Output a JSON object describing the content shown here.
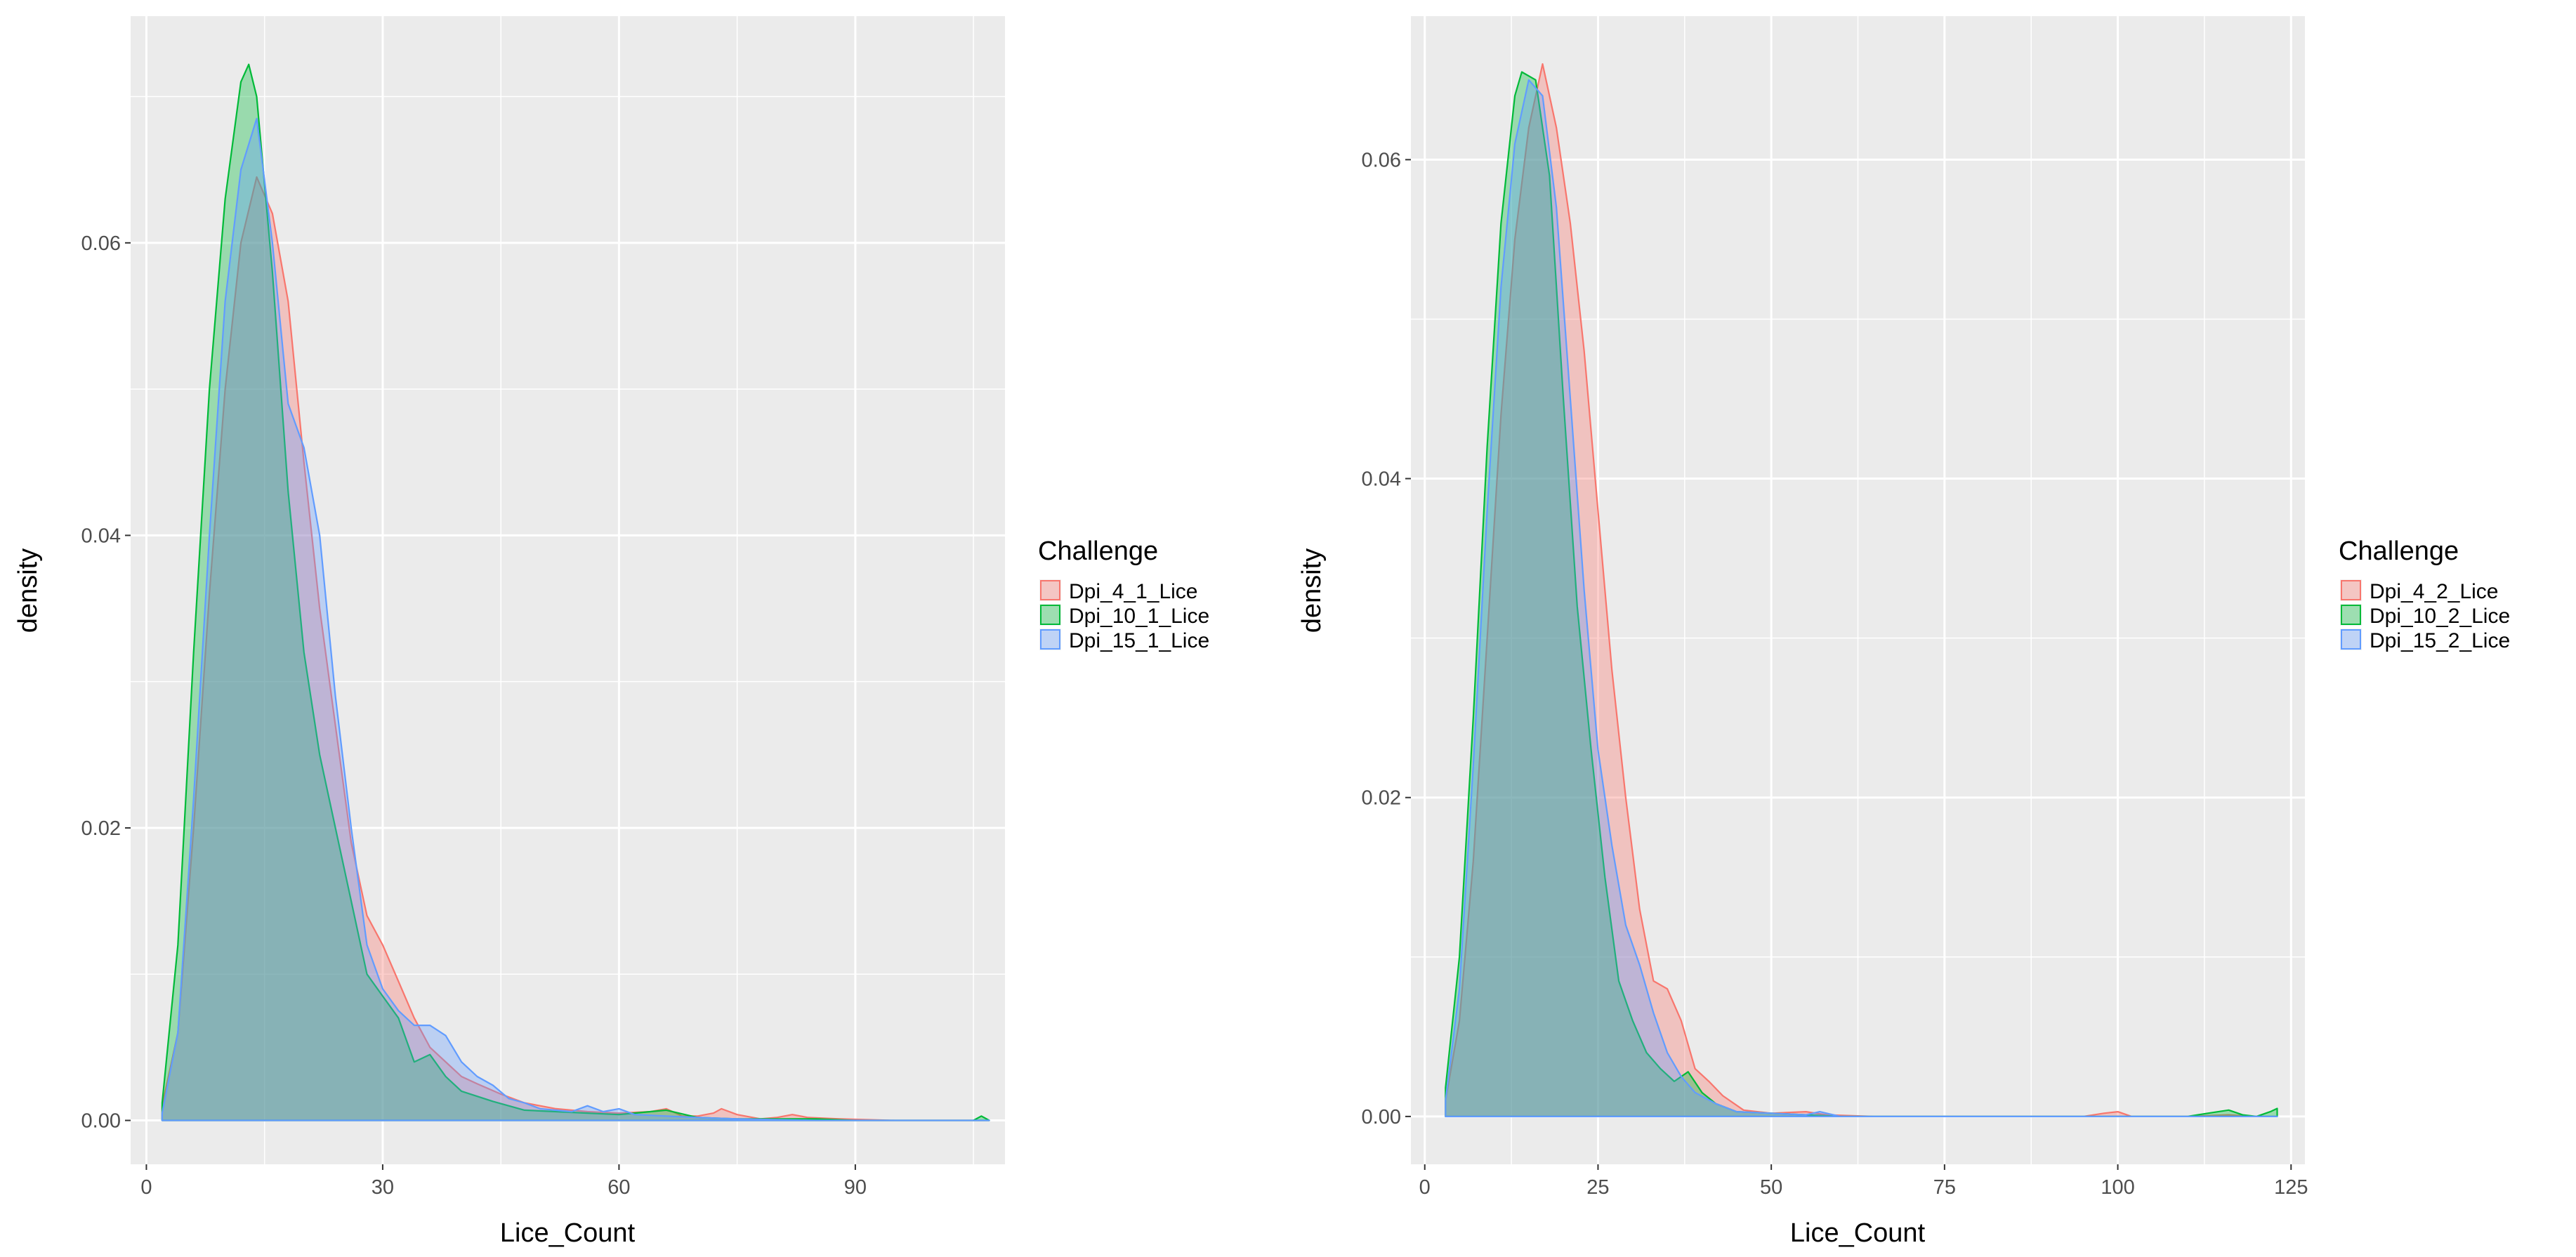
{
  "chart_data": [
    {
      "type": "area",
      "subtype": "density",
      "title": "",
      "xlabel": "Lice_Count",
      "ylabel": "density",
      "xlim": [
        -2,
        109
      ],
      "ylim": [
        -0.003,
        0.0755
      ],
      "x_ticks": [
        0,
        30,
        60,
        90
      ],
      "x_tick_labels": [
        "0",
        "30",
        "60",
        "90"
      ],
      "y_ticks": [
        0.0,
        0.02,
        0.04,
        0.06
      ],
      "y_tick_labels": [
        "0.00",
        "0.02",
        "0.04",
        "0.06"
      ],
      "grid": true,
      "legend": {
        "title": "Challenge",
        "position": "right"
      },
      "series": [
        {
          "name": "Dpi_4_1_Lice",
          "color": "#F8766D",
          "points": [
            [
              2,
              0.001
            ],
            [
              4,
              0.006
            ],
            [
              6,
              0.02
            ],
            [
              8,
              0.036
            ],
            [
              10,
              0.05
            ],
            [
              12,
              0.06
            ],
            [
              14,
              0.0645
            ],
            [
              16,
              0.062
            ],
            [
              18,
              0.056
            ],
            [
              20,
              0.045
            ],
            [
              22,
              0.035
            ],
            [
              24,
              0.027
            ],
            [
              26,
              0.019
            ],
            [
              28,
              0.014
            ],
            [
              30,
              0.012
            ],
            [
              32,
              0.0095
            ],
            [
              34,
              0.007
            ],
            [
              36,
              0.005
            ],
            [
              38,
              0.004
            ],
            [
              40,
              0.003
            ],
            [
              42,
              0.0025
            ],
            [
              45,
              0.0018
            ],
            [
              48,
              0.0012
            ],
            [
              52,
              0.0008
            ],
            [
              56,
              0.0006
            ],
            [
              60,
              0.0005
            ],
            [
              64,
              0.0006
            ],
            [
              66,
              0.0008
            ],
            [
              68,
              0.0003
            ],
            [
              70,
              0.0003
            ],
            [
              72,
              0.0005
            ],
            [
              73,
              0.0008
            ],
            [
              75,
              0.0004
            ],
            [
              78,
              0.0001
            ],
            [
              80,
              0.0002
            ],
            [
              82,
              0.0004
            ],
            [
              84,
              0.0002
            ],
            [
              88,
              0.0001
            ],
            [
              95,
              0.0
            ],
            [
              107,
              0.0
            ]
          ]
        },
        {
          "name": "Dpi_10_1_Lice",
          "color": "#00BA38",
          "points": [
            [
              2,
              0.0012
            ],
            [
              4,
              0.012
            ],
            [
              6,
              0.032
            ],
            [
              8,
              0.05
            ],
            [
              10,
              0.063
            ],
            [
              12,
              0.071
            ],
            [
              13,
              0.0722
            ],
            [
              14,
              0.07
            ],
            [
              16,
              0.058
            ],
            [
              18,
              0.043
            ],
            [
              20,
              0.032
            ],
            [
              22,
              0.025
            ],
            [
              24,
              0.02
            ],
            [
              26,
              0.015
            ],
            [
              28,
              0.01
            ],
            [
              30,
              0.0085
            ],
            [
              32,
              0.007
            ],
            [
              34,
              0.004
            ],
            [
              36,
              0.0045
            ],
            [
              38,
              0.003
            ],
            [
              40,
              0.002
            ],
            [
              44,
              0.0013
            ],
            [
              48,
              0.0007
            ],
            [
              52,
              0.0006
            ],
            [
              56,
              0.0005
            ],
            [
              60,
              0.0004
            ],
            [
              64,
              0.0006
            ],
            [
              66,
              0.0007
            ],
            [
              70,
              0.0002
            ],
            [
              75,
              0.0001
            ],
            [
              80,
              0.0001
            ],
            [
              85,
              0.0001
            ],
            [
              90,
              0.0
            ],
            [
              100,
              0.0
            ],
            [
              105,
              0.0
            ],
            [
              106,
              0.0003
            ],
            [
              107,
              0.0
            ]
          ]
        },
        {
          "name": "Dpi_15_1_Lice",
          "color": "#619CFF",
          "points": [
            [
              2,
              0.0005
            ],
            [
              4,
              0.006
            ],
            [
              6,
              0.022
            ],
            [
              8,
              0.04
            ],
            [
              10,
              0.056
            ],
            [
              12,
              0.065
            ],
            [
              14,
              0.0685
            ],
            [
              16,
              0.06
            ],
            [
              18,
              0.049
            ],
            [
              20,
              0.046
            ],
            [
              22,
              0.04
            ],
            [
              24,
              0.029
            ],
            [
              26,
              0.02
            ],
            [
              28,
              0.012
            ],
            [
              30,
              0.009
            ],
            [
              32,
              0.0075
            ],
            [
              34,
              0.0065
            ],
            [
              36,
              0.0065
            ],
            [
              38,
              0.0058
            ],
            [
              40,
              0.004
            ],
            [
              42,
              0.003
            ],
            [
              44,
              0.0024
            ],
            [
              46,
              0.0015
            ],
            [
              48,
              0.0012
            ],
            [
              50,
              0.0008
            ],
            [
              54,
              0.0006
            ],
            [
              56,
              0.001
            ],
            [
              58,
              0.0006
            ],
            [
              60,
              0.0008
            ],
            [
              62,
              0.0004
            ],
            [
              66,
              0.0003
            ],
            [
              70,
              0.0002
            ],
            [
              75,
              0.0001
            ],
            [
              85,
              0.0
            ],
            [
              107,
              0.0
            ]
          ]
        }
      ]
    },
    {
      "type": "area",
      "subtype": "density",
      "title": "",
      "xlabel": "Lice_Count",
      "ylabel": "density",
      "xlim": [
        -2,
        127
      ],
      "ylim": [
        -0.003,
        0.069
      ],
      "x_ticks": [
        0,
        25,
        50,
        75,
        100,
        125
      ],
      "x_tick_labels": [
        "0",
        "25",
        "50",
        "75",
        "100",
        "125"
      ],
      "y_ticks": [
        0.0,
        0.02,
        0.04,
        0.06
      ],
      "y_tick_labels": [
        "0.00",
        "0.02",
        "0.04",
        "0.06"
      ],
      "grid": true,
      "legend": {
        "title": "Challenge",
        "position": "right"
      },
      "series": [
        {
          "name": "Dpi_4_2_Lice",
          "color": "#F8766D",
          "points": [
            [
              3,
              0.001
            ],
            [
              5,
              0.006
            ],
            [
              7,
              0.016
            ],
            [
              9,
              0.03
            ],
            [
              11,
              0.044
            ],
            [
              13,
              0.055
            ],
            [
              15,
              0.062
            ],
            [
              17,
              0.066
            ],
            [
              19,
              0.062
            ],
            [
              21,
              0.056
            ],
            [
              23,
              0.048
            ],
            [
              25,
              0.038
            ],
            [
              27,
              0.028
            ],
            [
              29,
              0.02
            ],
            [
              31,
              0.013
            ],
            [
              33,
              0.0085
            ],
            [
              35,
              0.008
            ],
            [
              37,
              0.006
            ],
            [
              39,
              0.003
            ],
            [
              41,
              0.0022
            ],
            [
              43,
              0.0013
            ],
            [
              46,
              0.0004
            ],
            [
              50,
              0.0002
            ],
            [
              55,
              0.0003
            ],
            [
              58,
              0.0001
            ],
            [
              65,
              0.0
            ],
            [
              95,
              0.0
            ],
            [
              98,
              0.0002
            ],
            [
              100,
              0.0003
            ],
            [
              102,
              0.0
            ],
            [
              110,
              0.0
            ],
            [
              116,
              0.0001
            ],
            [
              120,
              0.0
            ],
            [
              123,
              0.0
            ]
          ]
        },
        {
          "name": "Dpi_10_2_Lice",
          "color": "#00BA38",
          "points": [
            [
              3,
              0.0018
            ],
            [
              5,
              0.01
            ],
            [
              7,
              0.025
            ],
            [
              9,
              0.042
            ],
            [
              11,
              0.056
            ],
            [
              13,
              0.064
            ],
            [
              14,
              0.0655
            ],
            [
              16,
              0.065
            ],
            [
              18,
              0.059
            ],
            [
              20,
              0.045
            ],
            [
              22,
              0.032
            ],
            [
              24,
              0.023
            ],
            [
              26,
              0.015
            ],
            [
              28,
              0.0085
            ],
            [
              30,
              0.006
            ],
            [
              32,
              0.004
            ],
            [
              34,
              0.003
            ],
            [
              36,
              0.0022
            ],
            [
              38,
              0.0028
            ],
            [
              40,
              0.0015
            ],
            [
              42,
              0.0008
            ],
            [
              45,
              0.0003
            ],
            [
              50,
              0.0002
            ],
            [
              55,
              0.0001
            ],
            [
              60,
              0.0
            ],
            [
              110,
              0.0
            ],
            [
              113,
              0.0002
            ],
            [
              116,
              0.0004
            ],
            [
              118,
              0.0001
            ],
            [
              120,
              0.0
            ],
            [
              122,
              0.0003
            ],
            [
              123,
              0.0005
            ]
          ]
        },
        {
          "name": "Dpi_15_2_Lice",
          "color": "#619CFF",
          "points": [
            [
              3,
              0.001
            ],
            [
              5,
              0.008
            ],
            [
              7,
              0.022
            ],
            [
              9,
              0.038
            ],
            [
              11,
              0.052
            ],
            [
              13,
              0.061
            ],
            [
              15,
              0.065
            ],
            [
              17,
              0.064
            ],
            [
              19,
              0.057
            ],
            [
              21,
              0.045
            ],
            [
              23,
              0.033
            ],
            [
              25,
              0.023
            ],
            [
              27,
              0.017
            ],
            [
              29,
              0.012
            ],
            [
              31,
              0.0095
            ],
            [
              33,
              0.0065
            ],
            [
              35,
              0.004
            ],
            [
              37,
              0.0025
            ],
            [
              39,
              0.0015
            ],
            [
              42,
              0.0008
            ],
            [
              45,
              0.0003
            ],
            [
              50,
              0.0002
            ],
            [
              55,
              0.0001
            ],
            [
              57,
              0.0003
            ],
            [
              60,
              0.0
            ],
            [
              123,
              0.0
            ]
          ]
        }
      ]
    }
  ]
}
